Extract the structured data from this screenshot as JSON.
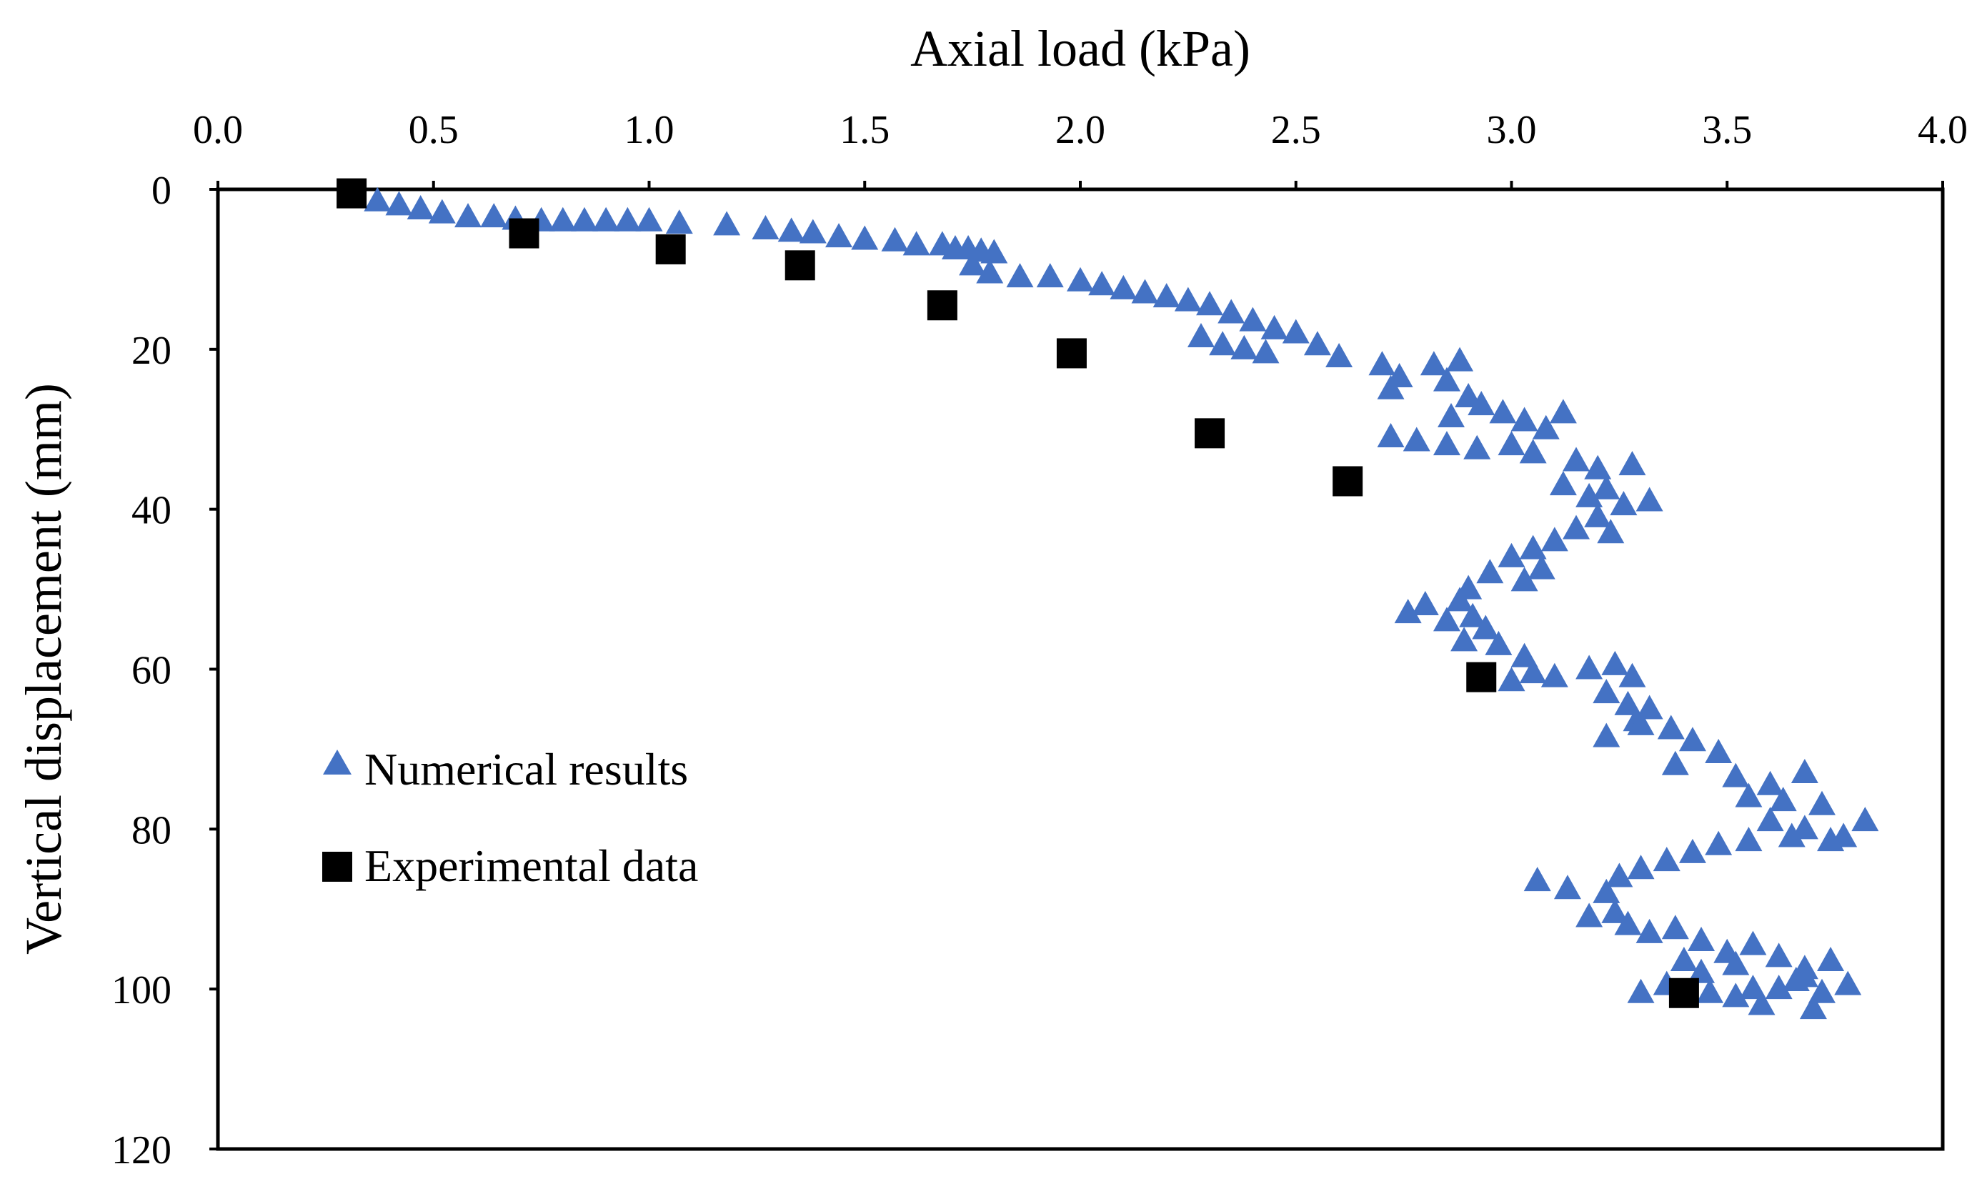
{
  "chart_data": {
    "type": "scatter",
    "title": "",
    "xlabel": "Axial load (kPa)",
    "ylabel": "Vertical displacement (mm)",
    "xlim": [
      0.0,
      4.0
    ],
    "ylim": [
      0,
      120
    ],
    "y_inverted": true,
    "x_axis_position": "top",
    "grid": false,
    "x_ticks": [
      "0.0",
      "0.5",
      "1.0",
      "1.5",
      "2.0",
      "2.5",
      "3.0",
      "3.5",
      "4.0"
    ],
    "y_ticks": [
      "0",
      "20",
      "40",
      "60",
      "80",
      "100",
      "120"
    ],
    "legend_position": "bottom-left",
    "series": [
      {
        "name": "Numerical results",
        "marker": "triangle",
        "color": "#4472C4",
        "points": [
          [
            0.37,
            1.5
          ],
          [
            0.42,
            2.0
          ],
          [
            0.47,
            2.5
          ],
          [
            0.52,
            3.0
          ],
          [
            0.58,
            3.5
          ],
          [
            0.64,
            3.5
          ],
          [
            0.69,
            3.8
          ],
          [
            0.75,
            4.0
          ],
          [
            0.8,
            4.0
          ],
          [
            0.85,
            4.0
          ],
          [
            0.9,
            4.0
          ],
          [
            0.95,
            4.0
          ],
          [
            1.0,
            4.0
          ],
          [
            1.07,
            4.3
          ],
          [
            1.18,
            4.5
          ],
          [
            1.27,
            5.0
          ],
          [
            1.33,
            5.3
          ],
          [
            1.38,
            5.5
          ],
          [
            1.44,
            6.0
          ],
          [
            1.5,
            6.3
          ],
          [
            1.57,
            6.5
          ],
          [
            1.62,
            7.0
          ],
          [
            1.68,
            7.0
          ],
          [
            1.71,
            7.5
          ],
          [
            1.74,
            7.5
          ],
          [
            1.77,
            7.8
          ],
          [
            1.8,
            8.0
          ],
          [
            1.75,
            9.5
          ],
          [
            1.79,
            10.5
          ],
          [
            1.86,
            11.0
          ],
          [
            1.93,
            11.0
          ],
          [
            2.0,
            11.5
          ],
          [
            2.05,
            12.0
          ],
          [
            2.1,
            12.5
          ],
          [
            2.15,
            13.0
          ],
          [
            2.2,
            13.5
          ],
          [
            2.25,
            14.0
          ],
          [
            2.3,
            14.5
          ],
          [
            2.35,
            15.5
          ],
          [
            2.4,
            16.5
          ],
          [
            2.45,
            17.5
          ],
          [
            2.5,
            18.0
          ],
          [
            2.55,
            19.5
          ],
          [
            2.6,
            21.0
          ],
          [
            2.28,
            18.5
          ],
          [
            2.33,
            19.5
          ],
          [
            2.38,
            20.0
          ],
          [
            2.43,
            20.5
          ],
          [
            2.7,
            22.0
          ],
          [
            2.74,
            23.5
          ],
          [
            2.72,
            25.0
          ],
          [
            2.82,
            22.0
          ],
          [
            2.85,
            24.0
          ],
          [
            2.88,
            21.5
          ],
          [
            2.9,
            26.0
          ],
          [
            2.93,
            27.0
          ],
          [
            2.86,
            28.5
          ],
          [
            2.98,
            28.0
          ],
          [
            3.03,
            29.0
          ],
          [
            3.08,
            30.0
          ],
          [
            3.12,
            28.0
          ],
          [
            2.72,
            31.0
          ],
          [
            2.78,
            31.5
          ],
          [
            2.85,
            32.0
          ],
          [
            2.92,
            32.5
          ],
          [
            3.0,
            32.0
          ],
          [
            3.05,
            33.0
          ],
          [
            3.15,
            34.0
          ],
          [
            3.2,
            35.0
          ],
          [
            3.28,
            34.5
          ],
          [
            3.12,
            37.0
          ],
          [
            3.18,
            38.5
          ],
          [
            3.22,
            37.5
          ],
          [
            3.26,
            39.5
          ],
          [
            3.32,
            39.0
          ],
          [
            3.2,
            41.0
          ],
          [
            3.15,
            42.5
          ],
          [
            3.23,
            43.0
          ],
          [
            3.1,
            44.0
          ],
          [
            3.05,
            45.0
          ],
          [
            3.0,
            46.0
          ],
          [
            3.07,
            47.5
          ],
          [
            3.03,
            49.0
          ],
          [
            2.95,
            48.0
          ],
          [
            2.9,
            50.0
          ],
          [
            2.88,
            51.5
          ],
          [
            2.8,
            52.0
          ],
          [
            2.76,
            53.0
          ],
          [
            2.85,
            54.0
          ],
          [
            2.91,
            53.5
          ],
          [
            2.94,
            55.0
          ],
          [
            2.89,
            56.5
          ],
          [
            2.97,
            57.0
          ],
          [
            3.03,
            58.5
          ],
          [
            3.0,
            61.5
          ],
          [
            3.05,
            60.5
          ],
          [
            3.1,
            61.0
          ],
          [
            3.18,
            60.0
          ],
          [
            3.24,
            59.5
          ],
          [
            3.28,
            61.0
          ],
          [
            3.22,
            63.0
          ],
          [
            3.27,
            64.5
          ],
          [
            3.32,
            65.0
          ],
          [
            3.29,
            66.5
          ],
          [
            3.37,
            67.5
          ],
          [
            3.42,
            69.0
          ],
          [
            3.48,
            70.5
          ],
          [
            3.22,
            68.5
          ],
          [
            3.3,
            67.0
          ],
          [
            3.38,
            72.0
          ],
          [
            3.52,
            73.5
          ],
          [
            3.6,
            74.5
          ],
          [
            3.68,
            73.0
          ],
          [
            3.55,
            76.0
          ],
          [
            3.63,
            76.5
          ],
          [
            3.72,
            77.0
          ],
          [
            3.6,
            79.0
          ],
          [
            3.68,
            80.0
          ],
          [
            3.77,
            81.0
          ],
          [
            3.82,
            79.0
          ],
          [
            3.74,
            81.5
          ],
          [
            3.65,
            81.0
          ],
          [
            3.55,
            81.5
          ],
          [
            3.48,
            82.0
          ],
          [
            3.42,
            83.0
          ],
          [
            3.36,
            84.0
          ],
          [
            3.3,
            85.0
          ],
          [
            3.25,
            86.0
          ],
          [
            3.06,
            86.5
          ],
          [
            3.13,
            87.5
          ],
          [
            3.22,
            88.0
          ],
          [
            3.24,
            90.5
          ],
          [
            3.18,
            91.0
          ],
          [
            3.27,
            92.0
          ],
          [
            3.32,
            93.0
          ],
          [
            3.38,
            92.5
          ],
          [
            3.44,
            94.0
          ],
          [
            3.5,
            95.5
          ],
          [
            3.56,
            94.5
          ],
          [
            3.62,
            96.0
          ],
          [
            3.68,
            97.5
          ],
          [
            3.74,
            96.5
          ],
          [
            3.66,
            99.0
          ],
          [
            3.72,
            100.5
          ],
          [
            3.78,
            99.5
          ],
          [
            3.58,
            102.0
          ],
          [
            3.52,
            101.0
          ],
          [
            3.46,
            100.5
          ],
          [
            3.36,
            99.5
          ],
          [
            3.3,
            100.5
          ],
          [
            3.44,
            98.0
          ],
          [
            3.52,
            97.0
          ],
          [
            3.4,
            96.5
          ],
          [
            3.7,
            102.5
          ],
          [
            3.62,
            100.0
          ],
          [
            3.68,
            98.5
          ],
          [
            3.56,
            100.0
          ]
        ]
      },
      {
        "name": "Experimental data",
        "marker": "square",
        "color": "#000000",
        "points": [
          [
            0.31,
            0.5
          ],
          [
            0.71,
            5.5
          ],
          [
            1.05,
            7.5
          ],
          [
            1.35,
            9.5
          ],
          [
            1.68,
            14.5
          ],
          [
            1.98,
            20.5
          ],
          [
            2.3,
            30.5
          ],
          [
            2.62,
            36.5
          ],
          [
            2.93,
            61.0
          ],
          [
            3.4,
            100.5
          ]
        ]
      }
    ]
  }
}
